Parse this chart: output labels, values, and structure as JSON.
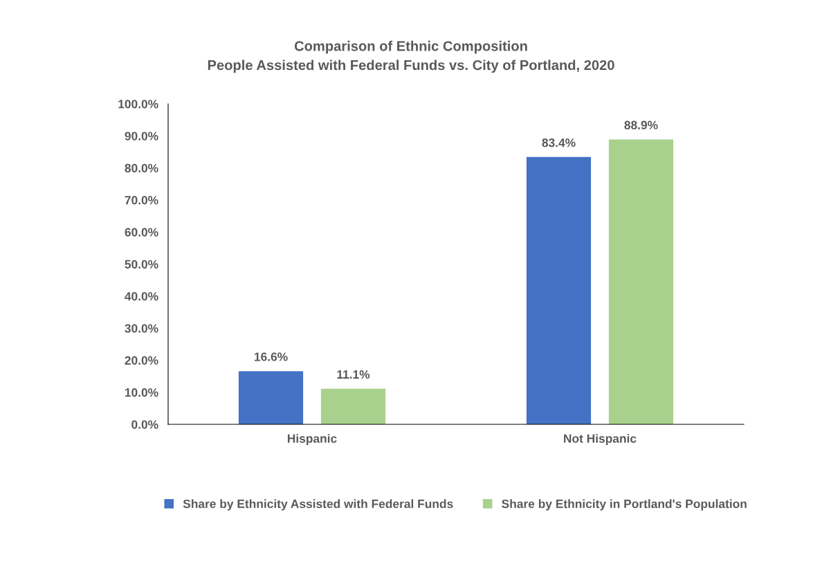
{
  "chart_data": {
    "type": "bar",
    "title": "Comparison of Ethnic Composition\nPeople Assisted with Federal Funds vs. City of Portland, 2020",
    "categories": [
      "Hispanic",
      "Not Hispanic"
    ],
    "series": [
      {
        "name": "Share by Ethnicity Assisted with Federal Funds",
        "color": "#4472c4",
        "values": [
          16.6,
          83.4
        ],
        "value_labels": [
          "16.6%",
          "83.4%"
        ]
      },
      {
        "name": "Share by Ethnicity in Portland's Population",
        "color": "#a9d18e",
        "values": [
          11.1,
          88.9
        ],
        "value_labels": [
          "11.1%",
          "88.9%"
        ]
      }
    ],
    "ylim": [
      0,
      100
    ],
    "yticks": [
      {
        "value": 0,
        "label": "0.0%"
      },
      {
        "value": 10,
        "label": "10.0%"
      },
      {
        "value": 20,
        "label": "20.0%"
      },
      {
        "value": 30,
        "label": "30.0%"
      },
      {
        "value": 40,
        "label": "40.0%"
      },
      {
        "value": 50,
        "label": "50.0%"
      },
      {
        "value": 60,
        "label": "60.0%"
      },
      {
        "value": 70,
        "label": "70.0%"
      },
      {
        "value": 80,
        "label": "80.0%"
      },
      {
        "value": 90,
        "label": "90.0%"
      },
      {
        "value": 100,
        "label": "100.0%"
      }
    ],
    "grid": false,
    "legend": "bottom"
  }
}
